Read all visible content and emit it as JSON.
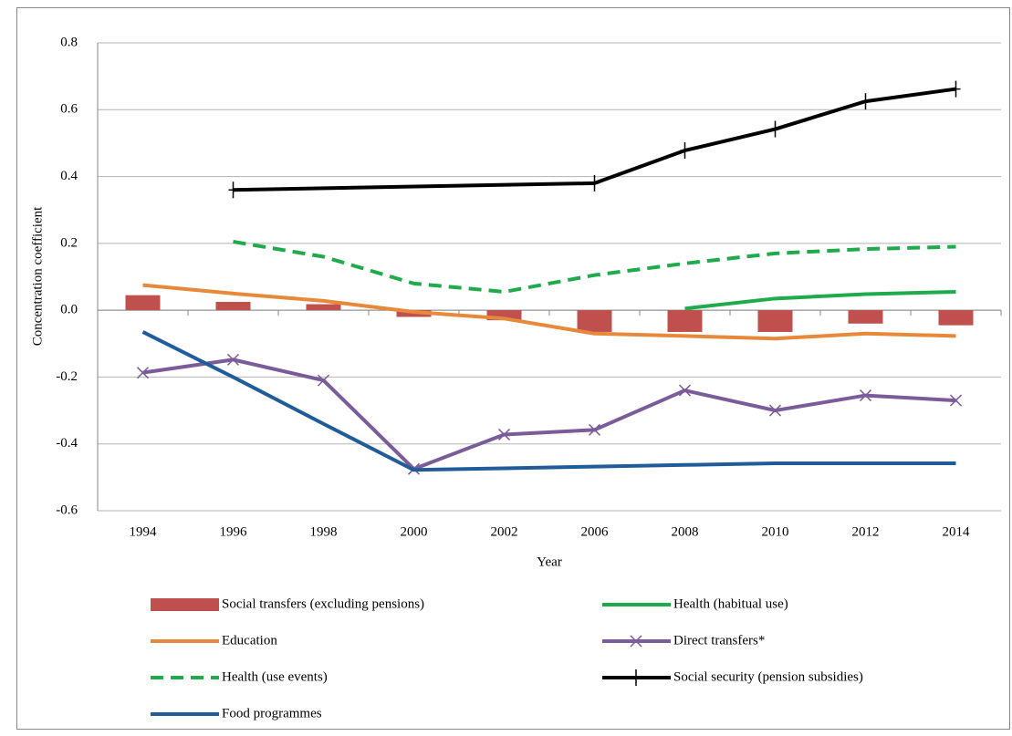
{
  "chart_data": {
    "type": "line",
    "y_label": "Concentration coefficient",
    "x_label": "Year",
    "categories": [
      "1994",
      "1996",
      "1998",
      "2000",
      "2002",
      "2006",
      "2008",
      "2010",
      "2012",
      "2014"
    ],
    "ylim": [
      -0.6,
      0.8
    ],
    "yticks": [
      {
        "value": -0.6,
        "label": "-0.6"
      },
      {
        "value": -0.4,
        "label": "-0.4"
      },
      {
        "value": -0.2,
        "label": "-0.2"
      },
      {
        "value": 0,
        "label": "0.0"
      },
      {
        "value": 0.2,
        "label": "0.2"
      },
      {
        "value": 0.4,
        "label": "0.4"
      },
      {
        "value": 0.6,
        "label": "0.6"
      },
      {
        "value": 0.8,
        "label": "0.8"
      }
    ],
    "grid": true,
    "legend": "bottom",
    "connect_gaps": true,
    "series": [
      {
        "name": "Social transfers (excluding pensions)",
        "type": "bar",
        "color": "#c0504d",
        "values": [
          0.045,
          0.025,
          0.018,
          -0.02,
          -0.03,
          -0.065,
          -0.065,
          -0.065,
          -0.04,
          -0.045
        ]
      },
      {
        "name": "Health (habitual use)",
        "type": "line",
        "color": "#1faa4b",
        "values": [
          null,
          null,
          null,
          null,
          null,
          null,
          0.005,
          0.035,
          0.048,
          0.055
        ]
      },
      {
        "name": "Education",
        "type": "line",
        "color": "#e8883a",
        "values": [
          0.075,
          0.05,
          0.028,
          -0.005,
          -0.025,
          -0.07,
          -0.077,
          -0.085,
          -0.07,
          -0.077
        ]
      },
      {
        "name": "Direct transfers*",
        "type": "line",
        "color": "#7b5c9a",
        "marker": "x",
        "values": [
          -0.187,
          -0.148,
          -0.21,
          -0.475,
          -0.372,
          -0.358,
          -0.24,
          -0.3,
          -0.255,
          -0.27
        ]
      },
      {
        "name": "Health (use events)",
        "type": "line",
        "color": "#1faa4b",
        "dash": "dashed",
        "values": [
          null,
          0.205,
          0.16,
          0.08,
          0.055,
          0.105,
          0.14,
          0.17,
          0.183,
          0.19
        ]
      },
      {
        "name": "Social security (pension subsidies)",
        "type": "line",
        "color": "#000000",
        "marker": "plus",
        "values": [
          null,
          0.36,
          null,
          null,
          null,
          0.38,
          0.478,
          0.542,
          0.625,
          0.662
        ]
      },
      {
        "name": "Food programmes",
        "type": "line",
        "color": "#1f5c99",
        "values": [
          -0.065,
          -0.2,
          -0.34,
          -0.478,
          -0.473,
          -0.468,
          -0.463,
          -0.458,
          -0.458,
          -0.458
        ]
      }
    ]
  }
}
